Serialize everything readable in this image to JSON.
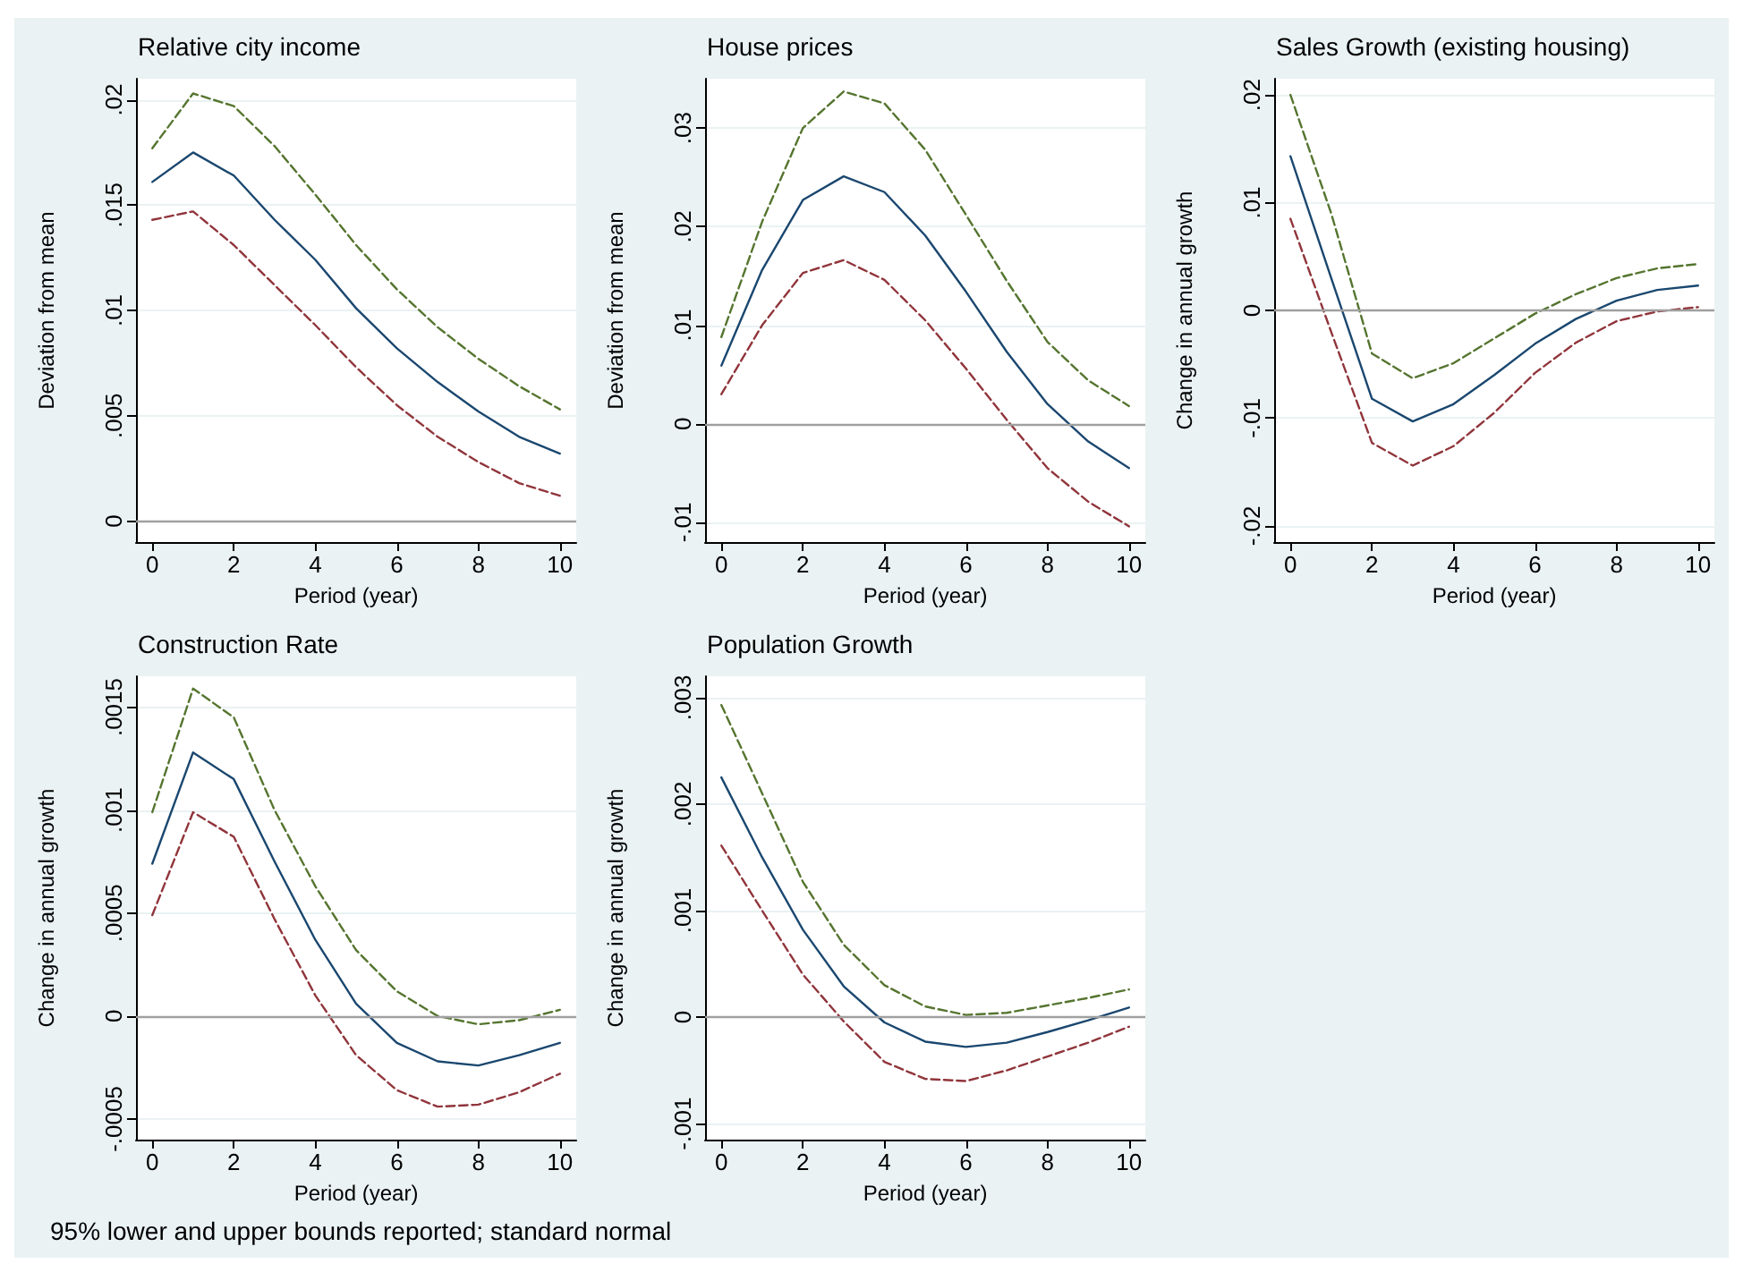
{
  "chart_data": [
    {
      "type": "line",
      "title": "Relative city income",
      "xlabel": "Period (year)",
      "ylabel": "Deviation from mean",
      "x": [
        0,
        1,
        2,
        3,
        4,
        5,
        6,
        7,
        8,
        9,
        10
      ],
      "xlim": [
        -0.4,
        10.4
      ],
      "xticks": [
        0,
        2,
        4,
        6,
        8,
        10
      ],
      "ylim": [
        -0.001,
        0.021
      ],
      "yticks": [
        {
          "value": 0,
          "label": "0"
        },
        {
          "value": 0.005,
          "label": ".005"
        },
        {
          "value": 0.01,
          "label": ".01"
        },
        {
          "value": 0.015,
          "label": ".015"
        },
        {
          "value": 0.02,
          "label": ".02"
        }
      ],
      "grid": "y",
      "marker": "none",
      "ref_lines": [
        {
          "axis": "y",
          "value": 0,
          "color": "#a0a0a0"
        }
      ],
      "series": [
        {
          "color": "#1a476f",
          "line_style": "solid",
          "values": [
            0.0161,
            0.0175,
            0.0164,
            0.0143,
            0.0124,
            0.0101,
            0.0082,
            0.0066,
            0.0052,
            0.004,
            0.0032
          ]
        },
        {
          "color": "#55752f",
          "line_style": "dashed",
          "values": [
            0.0177,
            0.0203,
            0.0197,
            0.0178,
            0.0155,
            0.0131,
            0.011,
            0.0092,
            0.0077,
            0.0064,
            0.0053
          ]
        },
        {
          "color": "#90353b",
          "line_style": "dashed",
          "values": [
            0.0143,
            0.0147,
            0.0131,
            0.0112,
            0.0093,
            0.0073,
            0.0055,
            0.004,
            0.0028,
            0.0018,
            0.0012
          ]
        }
      ]
    },
    {
      "type": "line",
      "title": "House prices",
      "xlabel": "Period (year)",
      "ylabel": "Deviation from mean",
      "x": [
        0,
        1,
        2,
        3,
        4,
        5,
        6,
        7,
        8,
        9,
        10
      ],
      "xlim": [
        -0.4,
        10.4
      ],
      "xticks": [
        0,
        2,
        4,
        6,
        8,
        10
      ],
      "ylim": [
        -0.012,
        0.035
      ],
      "yticks": [
        {
          "value": -0.01,
          "label": "-.01"
        },
        {
          "value": 0,
          "label": "0"
        },
        {
          "value": 0.01,
          "label": ".01"
        },
        {
          "value": 0.02,
          "label": ".02"
        },
        {
          "value": 0.03,
          "label": ".03"
        }
      ],
      "grid": "y",
      "marker": "none",
      "ref_lines": [
        {
          "axis": "y",
          "value": 0,
          "color": "#a0a0a0"
        }
      ],
      "series": [
        {
          "color": "#1a476f",
          "line_style": "solid",
          "values": [
            0.0059,
            0.0156,
            0.0227,
            0.0251,
            0.0235,
            0.0191,
            0.0134,
            0.0073,
            0.002,
            -0.0018,
            -0.0045
          ]
        },
        {
          "color": "#55752f",
          "line_style": "dashed",
          "values": [
            0.0088,
            0.0205,
            0.03,
            0.0337,
            0.0325,
            0.0278,
            0.0212,
            0.0145,
            0.0083,
            0.0044,
            0.0018
          ]
        },
        {
          "color": "#90353b",
          "line_style": "dashed",
          "values": [
            0.003,
            0.01,
            0.0153,
            0.0166,
            0.0146,
            0.0105,
            0.0056,
            0.0004,
            -0.0045,
            -0.0079,
            -0.0104
          ]
        }
      ]
    },
    {
      "type": "line",
      "title": "Sales Growth (existing housing)",
      "xlabel": "Period (year)",
      "ylabel": "Change in annual growth",
      "x": [
        0,
        1,
        2,
        3,
        4,
        5,
        6,
        7,
        8,
        9,
        10
      ],
      "xlim": [
        -0.4,
        10.4
      ],
      "xticks": [
        0,
        2,
        4,
        6,
        8,
        10
      ],
      "ylim": [
        -0.0215,
        0.0215
      ],
      "yticks": [
        {
          "value": -0.02,
          "label": "-.02"
        },
        {
          "value": -0.01,
          "label": "-.01"
        },
        {
          "value": 0,
          "label": "0"
        },
        {
          "value": 0.01,
          "label": ".01"
        },
        {
          "value": 0.02,
          "label": ".02"
        }
      ],
      "grid": "y",
      "marker": "none",
      "ref_lines": [
        {
          "axis": "y",
          "value": 0,
          "color": "#a0a0a0"
        }
      ],
      "series": [
        {
          "color": "#1a476f",
          "line_style": "solid",
          "values": [
            0.0143,
            0.003,
            -0.0082,
            -0.0103,
            -0.0087,
            -0.006,
            -0.0031,
            -0.0008,
            0.0009,
            0.0019,
            0.0023
          ]
        },
        {
          "color": "#55752f",
          "line_style": "dashed",
          "values": [
            0.02,
            0.009,
            -0.004,
            -0.0063,
            -0.0049,
            -0.0026,
            -0.0003,
            0.0015,
            0.003,
            0.0039,
            0.0043
          ]
        },
        {
          "color": "#90353b",
          "line_style": "dashed",
          "values": [
            0.0085,
            -0.002,
            -0.0123,
            -0.0144,
            -0.0126,
            -0.0095,
            -0.0058,
            -0.003,
            -0.001,
            -0.0001,
            0.0003
          ]
        }
      ]
    },
    {
      "type": "line",
      "title": "Construction Rate",
      "xlabel": "Period (year)",
      "ylabel": "Change in annual growth",
      "x": [
        0,
        1,
        2,
        3,
        4,
        5,
        6,
        7,
        8,
        9,
        10
      ],
      "xlim": [
        -0.4,
        10.4
      ],
      "xticks": [
        0,
        2,
        4,
        6,
        8,
        10
      ],
      "ylim": [
        -0.0006,
        0.00165
      ],
      "yticks": [
        {
          "value": -0.0005,
          "label": "-.0005"
        },
        {
          "value": 0,
          "label": "0"
        },
        {
          "value": 0.0005,
          "label": ".0005"
        },
        {
          "value": 0.001,
          "label": ".001"
        },
        {
          "value": 0.0015,
          "label": ".0015"
        }
      ],
      "grid": "y",
      "marker": "none",
      "ref_lines": [
        {
          "axis": "y",
          "value": 0,
          "color": "#a0a0a0"
        }
      ],
      "annotations": [
        "95% lower and upper bounds reported; standard normal"
      ],
      "series": [
        {
          "color": "#1a476f",
          "line_style": "solid",
          "values": [
            0.00074,
            0.00128,
            0.00115,
            0.00075,
            0.00037,
            6e-05,
            -0.00013,
            -0.00022,
            -0.00024,
            -0.00019,
            -0.00013
          ]
        },
        {
          "color": "#55752f",
          "line_style": "dashed",
          "values": [
            0.00099,
            0.00159,
            0.00145,
            0.001,
            0.00063,
            0.00032,
            0.00012,
            0.0,
            -4e-05,
            -2e-05,
            3e-05
          ]
        },
        {
          "color": "#90353b",
          "line_style": "dashed",
          "values": [
            0.00049,
            0.00099,
            0.00087,
            0.00047,
            0.0001,
            -0.00019,
            -0.00036,
            -0.00044,
            -0.00043,
            -0.00037,
            -0.00028
          ]
        }
      ]
    },
    {
      "type": "line",
      "title": "Population Growth",
      "xlabel": "Period (year)",
      "ylabel": "Change in annual growth",
      "x": [
        0,
        1,
        2,
        3,
        4,
        5,
        6,
        7,
        8,
        9,
        10
      ],
      "xlim": [
        -0.4,
        10.4
      ],
      "xticks": [
        0,
        2,
        4,
        6,
        8,
        10
      ],
      "ylim": [
        -0.00115,
        0.0032
      ],
      "yticks": [
        {
          "value": -0.001,
          "label": "-.001"
        },
        {
          "value": 0,
          "label": "0"
        },
        {
          "value": 0.001,
          "label": ".001"
        },
        {
          "value": 0.002,
          "label": ".002"
        },
        {
          "value": 0.003,
          "label": ".003"
        }
      ],
      "grid": "y",
      "marker": "none",
      "ref_lines": [
        {
          "axis": "y",
          "value": 0,
          "color": "#a0a0a0"
        }
      ],
      "series": [
        {
          "color": "#1a476f",
          "line_style": "solid",
          "values": [
            0.00225,
            0.0015,
            0.00082,
            0.00029,
            -5e-05,
            -0.00023,
            -0.00028,
            -0.00024,
            -0.00014,
            -3e-05,
            9e-05
          ]
        },
        {
          "color": "#55752f",
          "line_style": "dashed",
          "values": [
            0.00293,
            0.0021,
            0.00127,
            0.00068,
            0.0003,
            0.0001,
            2e-05,
            4e-05,
            0.00011,
            0.00018,
            0.00026
          ]
        },
        {
          "color": "#90353b",
          "line_style": "dashed",
          "values": [
            0.00161,
            0.001,
            0.0004,
            -4e-05,
            -0.00042,
            -0.00058,
            -0.0006,
            -0.0005,
            -0.00037,
            -0.00024,
            -9e-05
          ]
        }
      ]
    }
  ]
}
